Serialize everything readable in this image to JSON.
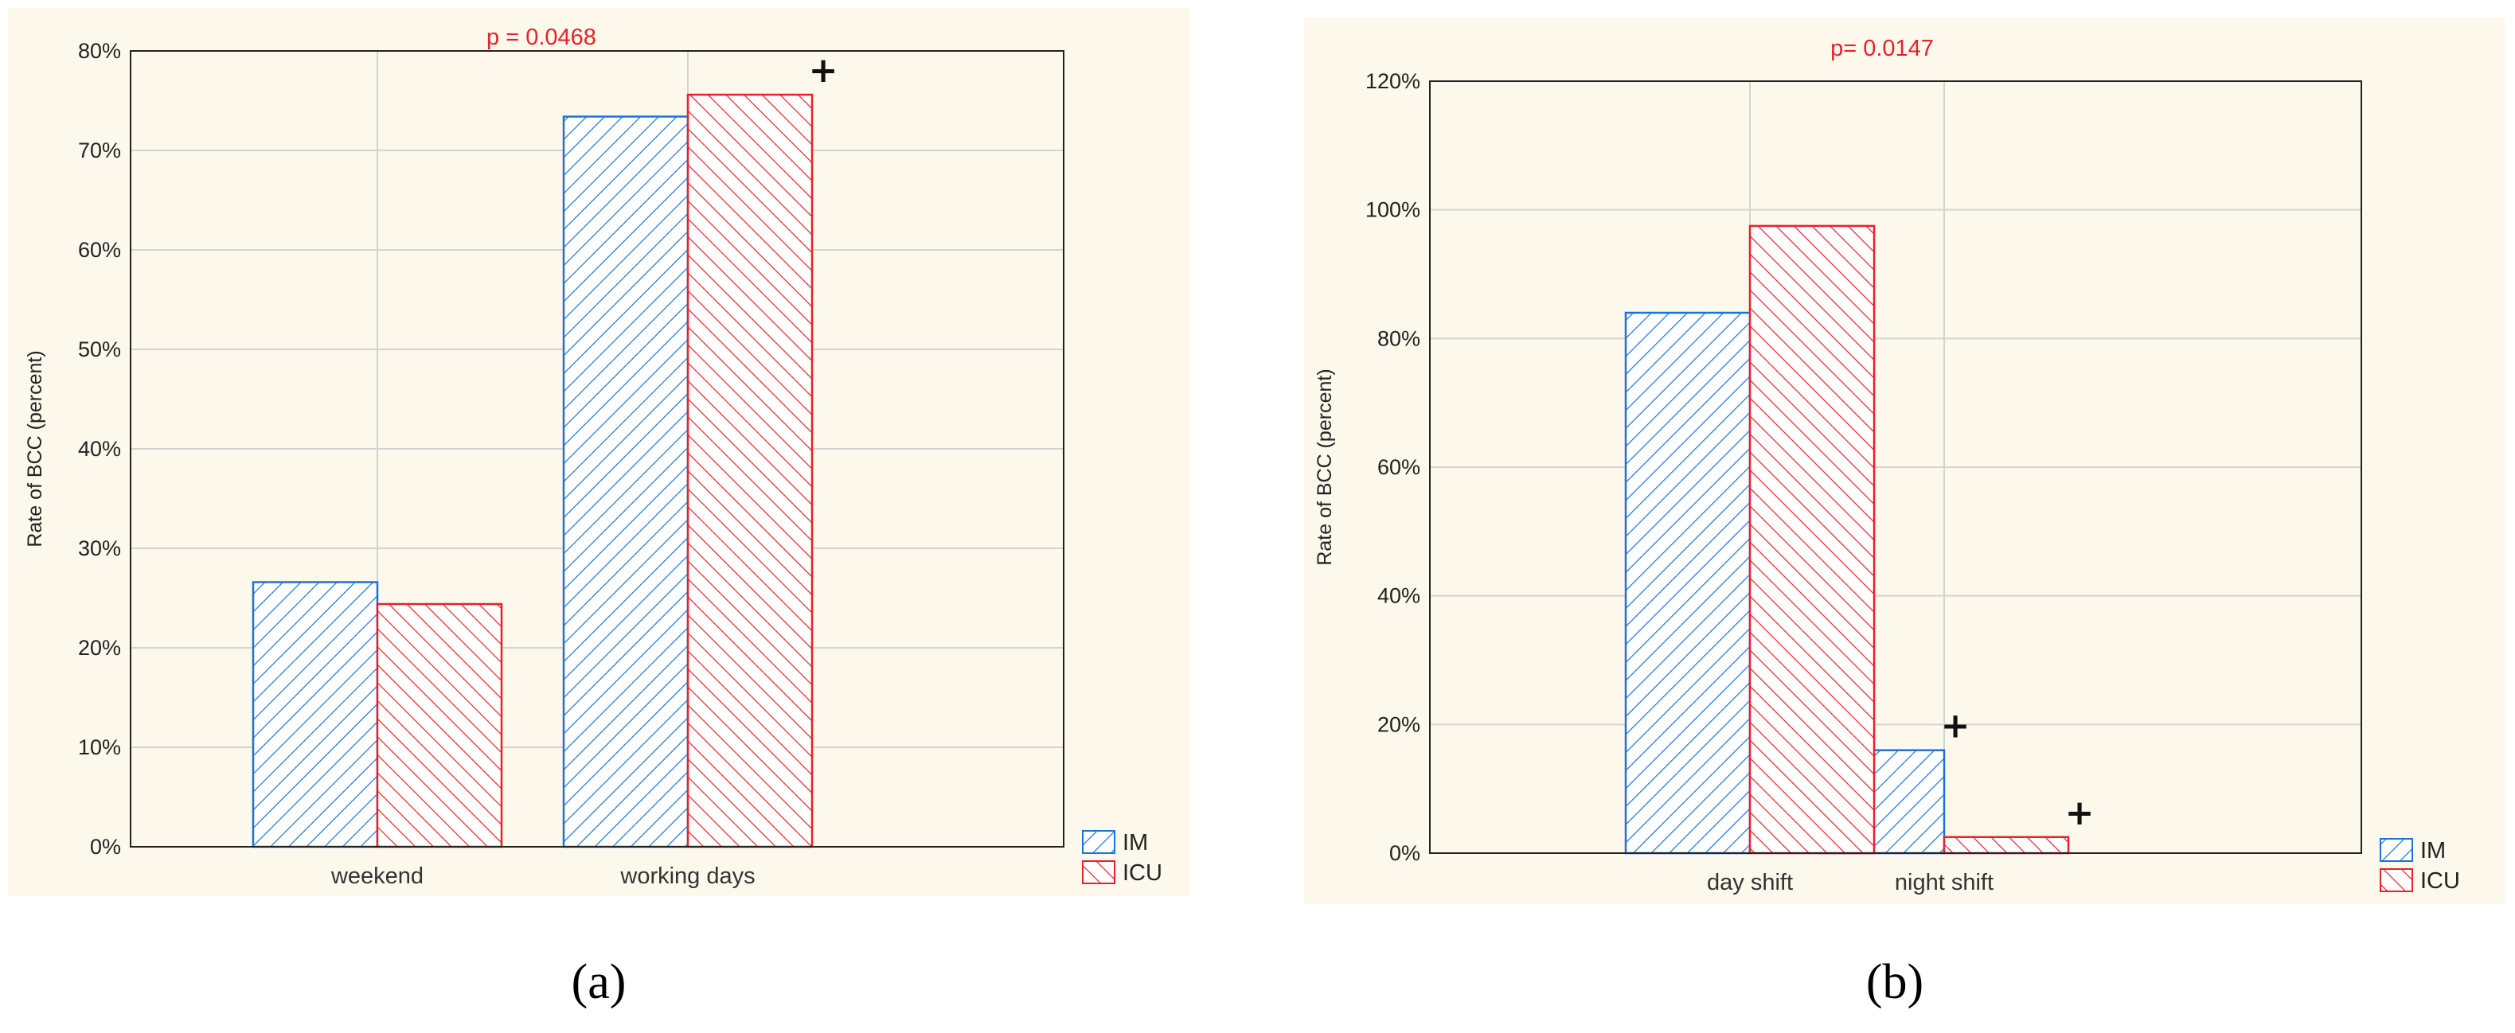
{
  "colors": {
    "im_stroke": "#1a73d9",
    "icu_stroke": "#e8212a",
    "p_text": "#e8212a",
    "panel_bg": "#fdf8ec",
    "grid": "#d3d3d3"
  },
  "chart_data": [
    {
      "type": "bar",
      "panel_label": "(a)",
      "annotation": "p = 0.0468",
      "ylabel": "Rate of BCC (percent)",
      "xlabel": "",
      "categories": [
        "weekend",
        "working days"
      ],
      "series": [
        {
          "name": "IM",
          "values": [
            26.6,
            73.4
          ]
        },
        {
          "name": "ICU",
          "values": [
            24.4,
            75.6
          ]
        }
      ],
      "ylim": [
        0,
        80
      ],
      "yticks": [
        0,
        10,
        20,
        30,
        40,
        50,
        60,
        70,
        80
      ],
      "yticklabels": [
        "0%",
        "10%",
        "20%",
        "30%",
        "40%",
        "50%",
        "60%",
        "70%",
        "80%"
      ],
      "markers": [
        {
          "category": 1,
          "series": 1,
          "label": "+"
        }
      ],
      "grid": true,
      "legend": "bottom-right"
    },
    {
      "type": "bar",
      "panel_label": "(b)",
      "annotation": "p= 0.0147",
      "ylabel": "Rate of BCC (percent)",
      "xlabel": "",
      "categories": [
        "day shift",
        "night shift"
      ],
      "series": [
        {
          "name": "IM",
          "values": [
            84,
            16
          ]
        },
        {
          "name": "ICU",
          "values": [
            97.5,
            2.5
          ]
        }
      ],
      "ylim": [
        0,
        120
      ],
      "yticks": [
        0,
        20,
        40,
        60,
        80,
        100,
        120
      ],
      "yticklabels": [
        "0%",
        "20%",
        "40%",
        "60%",
        "80%",
        "100%",
        "120%"
      ],
      "markers": [
        {
          "category": 1,
          "series": 0,
          "label": "+"
        },
        {
          "category": 1,
          "series": 1,
          "label": "+"
        }
      ],
      "grid": true,
      "legend": "bottom-right"
    }
  ]
}
